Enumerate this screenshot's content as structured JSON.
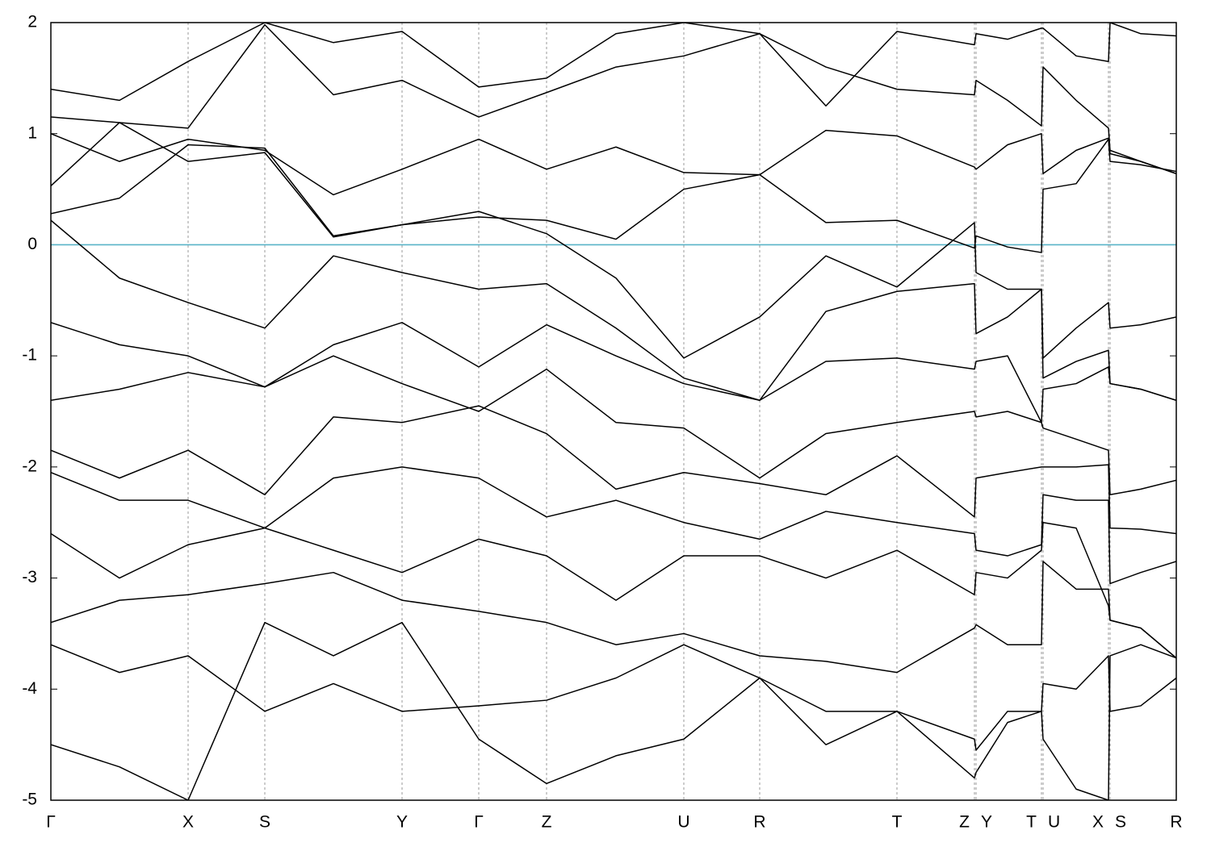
{
  "chart_data": {
    "type": "line",
    "x": [
      0,
      0.85,
      1.7,
      2.65,
      3.5,
      4.35,
      5.3,
      6.14,
      7.0,
      7.84,
      8.78,
      9.6,
      10.48,
      11.44,
      11.46,
      11.85,
      12.27,
      12.29,
      12.7,
      13.1,
      13.12,
      13.5,
      13.94
    ],
    "xlim": [
      0,
      13.94
    ],
    "xticks": [
      {
        "value": 0,
        "label": "Γ"
      },
      {
        "value": 1.7,
        "label": "X"
      },
      {
        "value": 2.65,
        "label": "S"
      },
      {
        "value": 4.35,
        "label": "Y"
      },
      {
        "value": 5.3,
        "label": "Γ"
      },
      {
        "value": 6.14,
        "label": "Z"
      },
      {
        "value": 7.84,
        "label": "U"
      },
      {
        "value": 8.78,
        "label": "R"
      },
      {
        "value": 10.48,
        "label": "T"
      },
      {
        "value": 11.44,
        "label": "Z"
      },
      {
        "value": 11.46,
        "label": "Y"
      },
      {
        "value": 12.27,
        "label": "T"
      },
      {
        "value": 12.29,
        "label": "U"
      },
      {
        "value": 13.1,
        "label": "X"
      },
      {
        "value": 13.12,
        "label": "S"
      },
      {
        "value": 13.94,
        "label": "R"
      }
    ],
    "ylim": [
      -5,
      2
    ],
    "yticks": [
      -5,
      -4,
      -3,
      -2,
      -1,
      0,
      1,
      2
    ],
    "grid": true,
    "fermi_level": 0,
    "fermi_color": "#5ab4c8",
    "line_color": "#000000",
    "series": [
      {
        "values": [
          1.4,
          1.3,
          1.65,
          2.0,
          1.82,
          1.92,
          1.42,
          1.5,
          1.9,
          2.0,
          1.9,
          1.25,
          1.92,
          1.8,
          1.9,
          1.85,
          1.95,
          1.95,
          1.7,
          1.65,
          2.0,
          1.9,
          1.88
        ]
      },
      {
        "values": [
          1.15,
          1.1,
          1.05,
          1.98,
          1.35,
          1.48,
          1.15,
          1.37,
          1.6,
          1.7,
          1.9,
          1.6,
          1.4,
          1.35,
          1.48,
          1.3,
          1.07,
          1.6,
          1.3,
          1.05,
          0.85,
          0.75,
          0.64
        ]
      },
      {
        "values": [
          1.0,
          0.75,
          0.95,
          0.85,
          0.45,
          0.68,
          0.95,
          0.68,
          0.88,
          0.65,
          0.63,
          1.03,
          0.98,
          0.7,
          0.68,
          0.9,
          1.0,
          0.64,
          0.85,
          0.96,
          0.82,
          0.75,
          0.64
        ]
      },
      {
        "values": [
          0.53,
          1.1,
          0.75,
          0.83,
          0.07,
          0.18,
          0.25,
          0.22,
          0.05,
          0.5,
          0.63,
          0.2,
          0.22,
          -0.03,
          0.08,
          -0.02,
          -0.07,
          0.5,
          0.55,
          0.95,
          0.75,
          0.72,
          0.66
        ]
      },
      {
        "values": [
          0.28,
          0.42,
          0.9,
          0.87,
          0.08,
          0.18,
          0.3,
          0.1,
          -0.3,
          -1.02,
          -0.65,
          -0.1,
          -0.38,
          0.2,
          -0.25,
          -0.4,
          -0.4,
          -1.02,
          -0.75,
          -0.52,
          -0.75,
          -0.72,
          -0.65
        ]
      },
      {
        "values": [
          0.22,
          -0.3,
          -0.52,
          -0.75,
          -0.1,
          -0.25,
          -0.4,
          -0.35,
          -0.75,
          -1.2,
          -1.4,
          -0.6,
          -0.42,
          -0.35,
          -0.8,
          -0.65,
          -0.4,
          -1.2,
          -1.05,
          -0.95,
          -1.25,
          -1.3,
          -1.4
        ]
      },
      {
        "values": [
          -0.7,
          -0.9,
          -1.0,
          -1.28,
          -0.9,
          -0.7,
          -1.1,
          -0.72,
          -1.0,
          -1.25,
          -1.4,
          -1.05,
          -1.02,
          -1.12,
          -1.05,
          -1.0,
          -1.6,
          -1.3,
          -1.25,
          -1.1,
          -1.25,
          -1.3,
          -1.4
        ]
      },
      {
        "values": [
          -1.4,
          -1.3,
          -1.15,
          -1.28,
          -1.0,
          -1.25,
          -1.5,
          -1.12,
          -1.6,
          -1.65,
          -2.1,
          -1.7,
          -1.6,
          -1.5,
          -1.55,
          -1.5,
          -1.6,
          -1.65,
          -1.75,
          -1.85,
          -2.25,
          -2.2,
          -2.12
        ]
      },
      {
        "values": [
          -1.85,
          -2.1,
          -1.85,
          -2.25,
          -1.55,
          -1.6,
          -1.45,
          -1.7,
          -2.2,
          -2.05,
          -2.15,
          -2.25,
          -1.9,
          -2.45,
          -2.1,
          -2.05,
          -2.0,
          -2.0,
          -2.0,
          -1.98,
          -2.55,
          -2.56,
          -2.6
        ]
      },
      {
        "values": [
          -2.05,
          -2.3,
          -2.3,
          -2.55,
          -2.1,
          -2.0,
          -2.1,
          -2.45,
          -2.3,
          -2.5,
          -2.65,
          -2.4,
          -2.5,
          -2.6,
          -2.75,
          -2.8,
          -2.7,
          -2.25,
          -2.3,
          -2.3,
          -3.05,
          -2.95,
          -2.85
        ]
      },
      {
        "values": [
          -2.6,
          -3.0,
          -2.7,
          -2.55,
          -2.75,
          -2.95,
          -2.65,
          -2.8,
          -3.2,
          -2.8,
          -2.8,
          -3.0,
          -2.75,
          -3.15,
          -2.95,
          -3.0,
          -2.75,
          -2.5,
          -2.55,
          -3.25,
          -3.38,
          -3.45,
          -3.72
        ]
      },
      {
        "values": [
          -3.4,
          -3.2,
          -3.15,
          -3.05,
          -2.95,
          -3.2,
          -3.3,
          -3.4,
          -3.6,
          -3.5,
          -3.7,
          -3.75,
          -3.85,
          -3.45,
          -3.42,
          -3.6,
          -3.6,
          -2.85,
          -3.1,
          -3.1,
          -3.38,
          -3.45,
          -3.72
        ]
      },
      {
        "values": [
          -3.6,
          -3.85,
          -3.7,
          -4.2,
          -3.95,
          -4.2,
          -4.15,
          -4.1,
          -3.9,
          -3.6,
          -3.9,
          -4.5,
          -4.2,
          -4.45,
          -4.55,
          -4.2,
          -4.2,
          -3.95,
          -4.0,
          -3.7,
          -4.2,
          -4.15,
          -3.9
        ]
      },
      {
        "values": [
          -4.5,
          -4.7,
          -5.0,
          -3.4,
          -3.7,
          -3.4,
          -4.45,
          -4.85,
          -4.6,
          -4.45,
          -3.9,
          -4.2,
          -4.2,
          -4.8,
          -4.75,
          -4.3,
          -4.2,
          -4.45,
          -4.9,
          -5.0,
          -3.7,
          -3.6,
          -3.72
        ]
      }
    ]
  }
}
